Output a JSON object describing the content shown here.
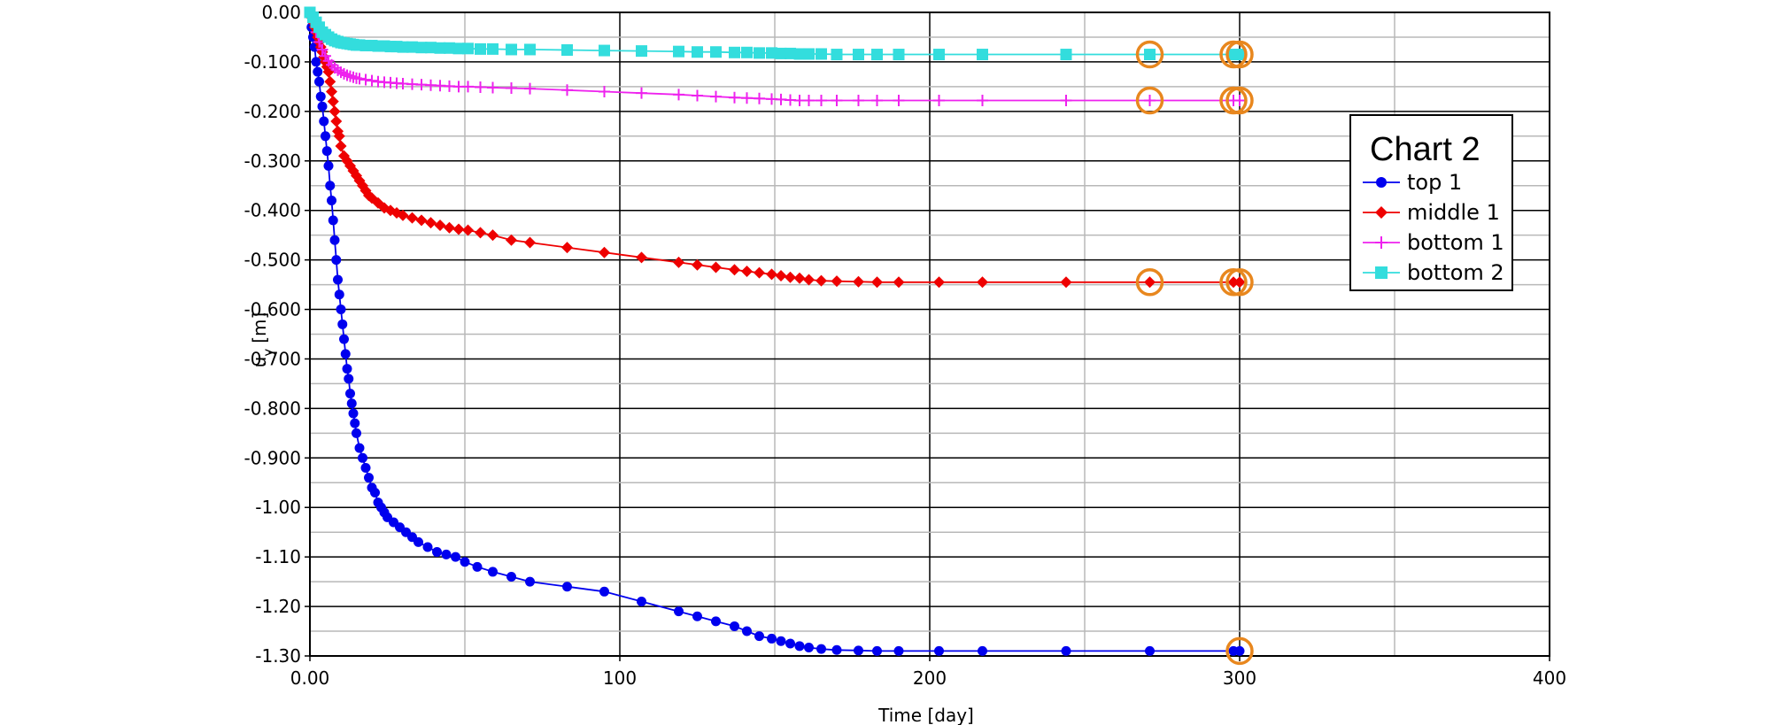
{
  "chart_data": {
    "type": "line",
    "title": "",
    "xlabel": "Time [day]",
    "ylabel_main": "u",
    "ylabel_sub": "y",
    "ylabel_unit": "[m]",
    "xlim": [
      0,
      400
    ],
    "ylim": [
      -1.3,
      0
    ],
    "x_ticks": [
      0,
      100,
      200,
      300,
      400
    ],
    "x_tick_labels": [
      "0.00",
      "100",
      "200",
      "300",
      "400"
    ],
    "y_ticks": [
      0,
      -0.1,
      -0.2,
      -0.3,
      -0.4,
      -0.5,
      -0.6,
      -0.7,
      -0.8,
      -0.9,
      -1.0,
      -1.1,
      -1.2,
      -1.3
    ],
    "y_tick_labels": [
      "0.00",
      "-0.100",
      "-0.200",
      "-0.300",
      "-0.400",
      "-0.500",
      "-0.600",
      "-0.700",
      "-0.800",
      "-0.900",
      "-1.00",
      "-1.10",
      "-1.20",
      "-1.30"
    ],
    "grid": true,
    "legend": {
      "title": "Chart 2",
      "position": "right"
    },
    "series": [
      {
        "name": "top 1",
        "color": "#0000ee",
        "marker": "circle",
        "x": [
          0,
          0.5,
          1,
          1.5,
          2,
          2.5,
          3,
          3.5,
          4,
          4.5,
          5,
          5.5,
          6,
          6.5,
          7,
          7.5,
          8,
          8.5,
          9,
          9.5,
          10,
          10.5,
          11,
          11.5,
          12,
          12.5,
          13,
          13.5,
          14,
          14.5,
          15,
          16,
          17,
          18,
          19,
          20,
          21,
          22,
          23,
          24,
          25,
          27,
          29,
          31,
          33,
          35,
          38,
          41,
          44,
          47,
          50,
          54,
          59,
          65,
          71,
          83,
          95,
          107,
          119,
          125,
          131,
          137,
          141,
          145,
          149,
          152,
          155,
          158,
          161,
          165,
          170,
          177,
          183,
          190,
          203,
          217,
          244,
          271,
          298,
          300
        ],
        "values": [
          0,
          -0.03,
          -0.05,
          -0.07,
          -0.1,
          -0.12,
          -0.14,
          -0.17,
          -0.19,
          -0.22,
          -0.25,
          -0.28,
          -0.31,
          -0.35,
          -0.38,
          -0.42,
          -0.46,
          -0.5,
          -0.54,
          -0.57,
          -0.6,
          -0.63,
          -0.66,
          -0.69,
          -0.72,
          -0.74,
          -0.77,
          -0.79,
          -0.81,
          -0.83,
          -0.85,
          -0.88,
          -0.9,
          -0.92,
          -0.94,
          -0.96,
          -0.97,
          -0.99,
          -1.0,
          -1.01,
          -1.02,
          -1.03,
          -1.04,
          -1.05,
          -1.06,
          -1.07,
          -1.08,
          -1.09,
          -1.095,
          -1.1,
          -1.11,
          -1.12,
          -1.13,
          -1.14,
          -1.15,
          -1.16,
          -1.17,
          -1.19,
          -1.21,
          -1.22,
          -1.23,
          -1.24,
          -1.25,
          -1.26,
          -1.265,
          -1.27,
          -1.275,
          -1.28,
          -1.283,
          -1.286,
          -1.288,
          -1.289,
          -1.29,
          -1.29,
          -1.29,
          -1.29,
          -1.29,
          -1.29,
          -1.29,
          -1.29
        ],
        "highlighted_x": [
          300
        ]
      },
      {
        "name": "middle 1",
        "color": "#ee0000",
        "marker": "diamond",
        "x": [
          0,
          0.5,
          1,
          1.5,
          2,
          2.5,
          3,
          3.5,
          4,
          4.5,
          5,
          5.5,
          6,
          6.5,
          7,
          7.5,
          8,
          8.5,
          9,
          9.5,
          10,
          11,
          12,
          13,
          14,
          15,
          16,
          17,
          18,
          19,
          20,
          22,
          24,
          26,
          28,
          30,
          33,
          36,
          39,
          42,
          45,
          48,
          51,
          55,
          59,
          65,
          71,
          83,
          95,
          107,
          119,
          125,
          131,
          137,
          141,
          145,
          149,
          152,
          155,
          158,
          161,
          165,
          170,
          177,
          183,
          190,
          203,
          217,
          244,
          271,
          298,
          300
        ],
        "values": [
          0,
          -0.01,
          -0.02,
          -0.03,
          -0.04,
          -0.05,
          -0.06,
          -0.07,
          -0.08,
          -0.09,
          -0.1,
          -0.11,
          -0.12,
          -0.14,
          -0.16,
          -0.18,
          -0.2,
          -0.22,
          -0.24,
          -0.25,
          -0.27,
          -0.29,
          -0.3,
          -0.31,
          -0.32,
          -0.33,
          -0.34,
          -0.35,
          -0.36,
          -0.37,
          -0.375,
          -0.385,
          -0.395,
          -0.4,
          -0.405,
          -0.41,
          -0.415,
          -0.42,
          -0.425,
          -0.43,
          -0.435,
          -0.438,
          -0.44,
          -0.445,
          -0.45,
          -0.46,
          -0.465,
          -0.475,
          -0.485,
          -0.495,
          -0.505,
          -0.51,
          -0.515,
          -0.52,
          -0.523,
          -0.526,
          -0.529,
          -0.532,
          -0.535,
          -0.537,
          -0.54,
          -0.542,
          -0.543,
          -0.544,
          -0.545,
          -0.545,
          -0.545,
          -0.545,
          -0.545,
          -0.545,
          -0.545,
          -0.545
        ],
        "highlighted_x": [
          271,
          298,
          300
        ]
      },
      {
        "name": "bottom 1",
        "color": "#ee22ee",
        "marker": "plus",
        "x": [
          0,
          1,
          2,
          3,
          4,
          5,
          6,
          7,
          8,
          9,
          10,
          11,
          12,
          13,
          14,
          15,
          16,
          18,
          20,
          22,
          24,
          26,
          28,
          30,
          33,
          36,
          39,
          42,
          45,
          48,
          51,
          55,
          59,
          65,
          71,
          83,
          95,
          107,
          119,
          125,
          131,
          137,
          141,
          145,
          149,
          152,
          155,
          158,
          161,
          165,
          170,
          177,
          183,
          190,
          203,
          217,
          244,
          271,
          298,
          300
        ],
        "values": [
          0,
          -0.02,
          -0.04,
          -0.06,
          -0.075,
          -0.088,
          -0.098,
          -0.106,
          -0.112,
          -0.117,
          -0.121,
          -0.124,
          -0.127,
          -0.129,
          -0.131,
          -0.133,
          -0.134,
          -0.136,
          -0.138,
          -0.14,
          -0.141,
          -0.142,
          -0.143,
          -0.144,
          -0.145,
          -0.146,
          -0.147,
          -0.148,
          -0.149,
          -0.15,
          -0.15,
          -0.151,
          -0.152,
          -0.153,
          -0.154,
          -0.157,
          -0.16,
          -0.163,
          -0.166,
          -0.168,
          -0.17,
          -0.172,
          -0.173,
          -0.174,
          -0.175,
          -0.176,
          -0.177,
          -0.178,
          -0.178,
          -0.178,
          -0.178,
          -0.178,
          -0.178,
          -0.178,
          -0.178,
          -0.178,
          -0.178,
          -0.178,
          -0.178,
          -0.178
        ],
        "highlighted_x": [
          271,
          298,
          300
        ]
      },
      {
        "name": "bottom 2",
        "color": "#33dddd",
        "marker": "square",
        "x": [
          0,
          1,
          2,
          3,
          4,
          5,
          6,
          7,
          8,
          9,
          10,
          11,
          12,
          13,
          14,
          15,
          16,
          18,
          20,
          22,
          24,
          26,
          28,
          30,
          33,
          36,
          39,
          42,
          45,
          48,
          51,
          55,
          59,
          65,
          71,
          83,
          95,
          107,
          119,
          125,
          131,
          137,
          141,
          145,
          149,
          152,
          155,
          158,
          161,
          165,
          170,
          177,
          183,
          190,
          203,
          217,
          244,
          271,
          298,
          300
        ],
        "values": [
          0,
          -0.01,
          -0.02,
          -0.03,
          -0.04,
          -0.045,
          -0.05,
          -0.054,
          -0.057,
          -0.059,
          -0.061,
          -0.062,
          -0.063,
          -0.064,
          -0.065,
          -0.066,
          -0.066,
          -0.067,
          -0.067,
          -0.068,
          -0.068,
          -0.069,
          -0.069,
          -0.07,
          -0.07,
          -0.071,
          -0.071,
          -0.072,
          -0.072,
          -0.073,
          -0.073,
          -0.074,
          -0.074,
          -0.075,
          -0.075,
          -0.076,
          -0.077,
          -0.078,
          -0.079,
          -0.08,
          -0.08,
          -0.081,
          -0.081,
          -0.082,
          -0.082,
          -0.083,
          -0.083,
          -0.084,
          -0.084,
          -0.084,
          -0.085,
          -0.085,
          -0.085,
          -0.085,
          -0.085,
          -0.085,
          -0.085,
          -0.085,
          -0.085,
          -0.085
        ],
        "highlighted_x": [
          271,
          298,
          300
        ]
      }
    ]
  }
}
